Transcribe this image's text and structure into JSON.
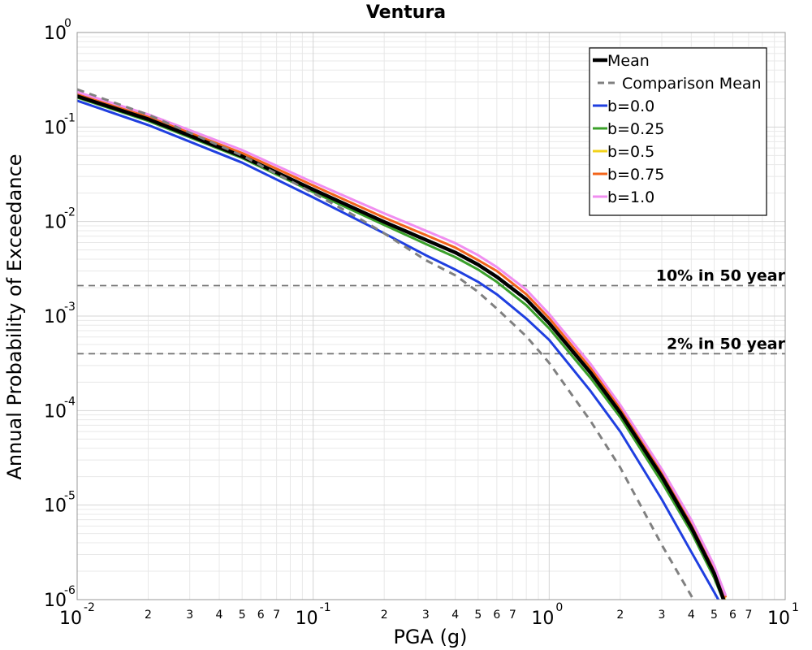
{
  "chart_data": {
    "type": "line",
    "title": "Ventura",
    "xlabel": "PGA (g)",
    "ylabel": "Annual Probability of Exceedance",
    "xscale": "log",
    "yscale": "log",
    "xlim": [
      0.01,
      10
    ],
    "ylim": [
      1e-06,
      1
    ],
    "grid": true,
    "legend_position": "top-right",
    "x_major_ticks": [
      {
        "base": "10",
        "exp": "-2"
      },
      {
        "base": "10",
        "exp": "-1"
      },
      {
        "base": "10",
        "exp": "0"
      },
      {
        "base": "10",
        "exp": "1"
      }
    ],
    "y_major_ticks": [
      {
        "base": "10",
        "exp": "0"
      },
      {
        "base": "10",
        "exp": "-1"
      },
      {
        "base": "10",
        "exp": "-2"
      },
      {
        "base": "10",
        "exp": "-3"
      },
      {
        "base": "10",
        "exp": "-4"
      },
      {
        "base": "10",
        "exp": "-5"
      },
      {
        "base": "10",
        "exp": "-6"
      }
    ],
    "x_minor_tick_labels": [
      "2",
      "3",
      "4",
      "5",
      "6",
      "7"
    ],
    "series": [
      {
        "name": "b=0.0",
        "color": "#1f3fe0",
        "dash": false,
        "width": 3,
        "x": [
          0.01,
          0.02,
          0.05,
          0.1,
          0.2,
          0.3,
          0.4,
          0.5,
          0.6,
          0.8,
          1.0,
          1.5,
          2.0,
          3.0,
          4.0,
          5.0,
          5.4
        ],
        "y": [
          0.19,
          0.105,
          0.042,
          0.018,
          0.0075,
          0.0044,
          0.0031,
          0.0023,
          0.0017,
          0.00094,
          0.00056,
          0.00016,
          6e-05,
          1.15e-05,
          3.2e-06,
          1.2e-06,
          8.5e-07
        ]
      },
      {
        "name": "b=0.25",
        "color": "#3aa02a",
        "dash": false,
        "width": 3,
        "x": [
          0.01,
          0.02,
          0.05,
          0.1,
          0.2,
          0.3,
          0.4,
          0.5,
          0.6,
          0.8,
          1.0,
          1.5,
          2.0,
          3.0,
          4.0,
          5.0,
          5.5
        ],
        "y": [
          0.205,
          0.116,
          0.047,
          0.0205,
          0.0092,
          0.0058,
          0.0042,
          0.0031,
          0.0023,
          0.0013,
          0.00074,
          0.00022,
          8.5e-05,
          1.75e-05,
          5.2e-06,
          1.7e-06,
          9.5e-07
        ]
      },
      {
        "name": "b=0.5",
        "color": "#f2d21a",
        "dash": false,
        "width": 3,
        "x": [
          0.01,
          0.02,
          0.05,
          0.1,
          0.2,
          0.3,
          0.4,
          0.5,
          0.6,
          0.8,
          1.0,
          1.5,
          2.0,
          3.0,
          4.0,
          5.0,
          5.6
        ],
        "y": [
          0.212,
          0.121,
          0.049,
          0.0218,
          0.0099,
          0.0064,
          0.0047,
          0.0035,
          0.0026,
          0.0015,
          0.00084,
          0.00025,
          9.5e-05,
          2e-05,
          5.8e-06,
          1.9e-06,
          9.5e-07
        ]
      },
      {
        "name": "b=0.75",
        "color": "#f2641a",
        "dash": false,
        "width": 3,
        "x": [
          0.01,
          0.02,
          0.05,
          0.1,
          0.2,
          0.3,
          0.4,
          0.5,
          0.6,
          0.8,
          1.0,
          1.5,
          2.0,
          3.0,
          4.0,
          5.0,
          5.6
        ],
        "y": [
          0.222,
          0.128,
          0.053,
          0.024,
          0.011,
          0.0072,
          0.0053,
          0.0039,
          0.003,
          0.0017,
          0.00095,
          0.00028,
          0.000105,
          2.2e-05,
          6.4e-06,
          2.1e-06,
          1.05e-06
        ]
      },
      {
        "name": "b=1.0",
        "color": "#f08ef0",
        "dash": false,
        "width": 3,
        "x": [
          0.01,
          0.02,
          0.05,
          0.1,
          0.2,
          0.3,
          0.4,
          0.5,
          0.6,
          0.8,
          1.0,
          1.5,
          2.0,
          3.0,
          4.0,
          5.0,
          5.6
        ],
        "y": [
          0.235,
          0.136,
          0.057,
          0.026,
          0.0122,
          0.008,
          0.0059,
          0.0044,
          0.0033,
          0.0019,
          0.00105,
          0.00031,
          0.000115,
          2.4e-05,
          7e-06,
          2.3e-06,
          1.1e-06
        ]
      },
      {
        "name": "Mean",
        "color": "#000000",
        "dash": false,
        "width": 4.5,
        "x": [
          0.01,
          0.02,
          0.05,
          0.1,
          0.2,
          0.3,
          0.4,
          0.5,
          0.6,
          0.8,
          1.0,
          1.5,
          2.0,
          3.0,
          4.0,
          5.0,
          5.5
        ],
        "y": [
          0.212,
          0.121,
          0.049,
          0.0218,
          0.0099,
          0.0064,
          0.0047,
          0.0035,
          0.0026,
          0.0015,
          0.00084,
          0.00025,
          9.5e-05,
          2e-05,
          5.8e-06,
          1.9e-06,
          9.8e-07
        ]
      },
      {
        "name": "Comparison Mean",
        "color": "#808080",
        "dash": true,
        "width": 3,
        "x": [
          0.01,
          0.02,
          0.05,
          0.1,
          0.15,
          0.2,
          0.3,
          0.4,
          0.5,
          0.6,
          0.8,
          1.0,
          1.5,
          2.0,
          3.0,
          4.0,
          4.6
        ],
        "y": [
          0.25,
          0.135,
          0.05,
          0.02,
          0.0115,
          0.0075,
          0.0039,
          0.0027,
          0.0018,
          0.0012,
          0.00061,
          0.00032,
          7.7e-05,
          2.5e-05,
          3.8e-06,
          1.1e-06,
          5.5e-07
        ]
      }
    ],
    "legend_order": [
      "Mean",
      "Comparison Mean",
      "b=0.0",
      "b=0.25",
      "b=0.5",
      "b=0.75",
      "b=1.0"
    ],
    "reference_lines": [
      {
        "label": "10% in 50 year",
        "y": 0.0021
      },
      {
        "label": "2% in 50 year",
        "y": 0.0004
      }
    ]
  }
}
